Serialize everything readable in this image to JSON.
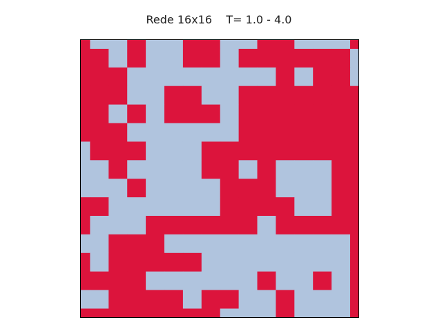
{
  "chart_data": {
    "type": "heatmap",
    "title": "Rede 16x16    T= 1.0 - 4.0",
    "grid_note": "lattice of spins; 1 = spin up (red), 0 = spin down (light blue); 16x16 lattice shown with edge cells cropped by the frame",
    "colors": {
      "up": "#dc143c",
      "down": "#b0c4de",
      "frame": "#000000",
      "background": "#ffffff"
    },
    "values": [
      [
        1,
        0,
        0,
        1,
        0,
        0,
        1,
        1,
        0,
        0,
        1,
        1,
        0,
        0,
        0,
        1
      ],
      [
        1,
        1,
        0,
        1,
        0,
        0,
        1,
        1,
        0,
        1,
        1,
        1,
        1,
        1,
        1,
        0
      ],
      [
        1,
        1,
        1,
        0,
        0,
        0,
        0,
        0,
        0,
        0,
        0,
        1,
        0,
        1,
        1,
        0
      ],
      [
        1,
        1,
        1,
        0,
        0,
        1,
        1,
        0,
        0,
        1,
        1,
        1,
        1,
        1,
        1,
        1
      ],
      [
        1,
        1,
        0,
        1,
        0,
        1,
        1,
        1,
        0,
        1,
        1,
        1,
        1,
        1,
        1,
        1
      ],
      [
        1,
        1,
        1,
        0,
        0,
        0,
        0,
        0,
        0,
        1,
        1,
        1,
        1,
        1,
        1,
        1
      ],
      [
        0,
        1,
        1,
        1,
        0,
        0,
        0,
        1,
        1,
        1,
        1,
        1,
        1,
        1,
        1,
        1
      ],
      [
        0,
        0,
        1,
        0,
        0,
        0,
        0,
        1,
        1,
        0,
        1,
        0,
        0,
        0,
        1,
        1
      ],
      [
        0,
        0,
        0,
        1,
        0,
        0,
        0,
        0,
        1,
        1,
        1,
        0,
        0,
        0,
        1,
        1
      ],
      [
        1,
        1,
        0,
        0,
        0,
        0,
        0,
        0,
        1,
        1,
        1,
        1,
        0,
        0,
        1,
        1
      ],
      [
        1,
        0,
        0,
        0,
        1,
        1,
        1,
        1,
        1,
        1,
        0,
        1,
        1,
        1,
        1,
        1
      ],
      [
        0,
        0,
        1,
        1,
        1,
        0,
        0,
        0,
        0,
        0,
        0,
        0,
        0,
        0,
        0,
        1
      ],
      [
        1,
        0,
        1,
        1,
        1,
        1,
        1,
        0,
        0,
        0,
        0,
        0,
        0,
        0,
        0,
        1
      ],
      [
        1,
        1,
        1,
        1,
        0,
        0,
        0,
        0,
        0,
        0,
        1,
        0,
        0,
        1,
        0,
        1
      ],
      [
        0,
        0,
        1,
        1,
        1,
        1,
        0,
        1,
        1,
        0,
        0,
        1,
        0,
        0,
        0,
        1
      ],
      [
        1,
        1,
        1,
        1,
        1,
        1,
        1,
        1,
        0,
        0,
        0,
        1,
        0,
        0,
        0,
        1
      ]
    ]
  }
}
